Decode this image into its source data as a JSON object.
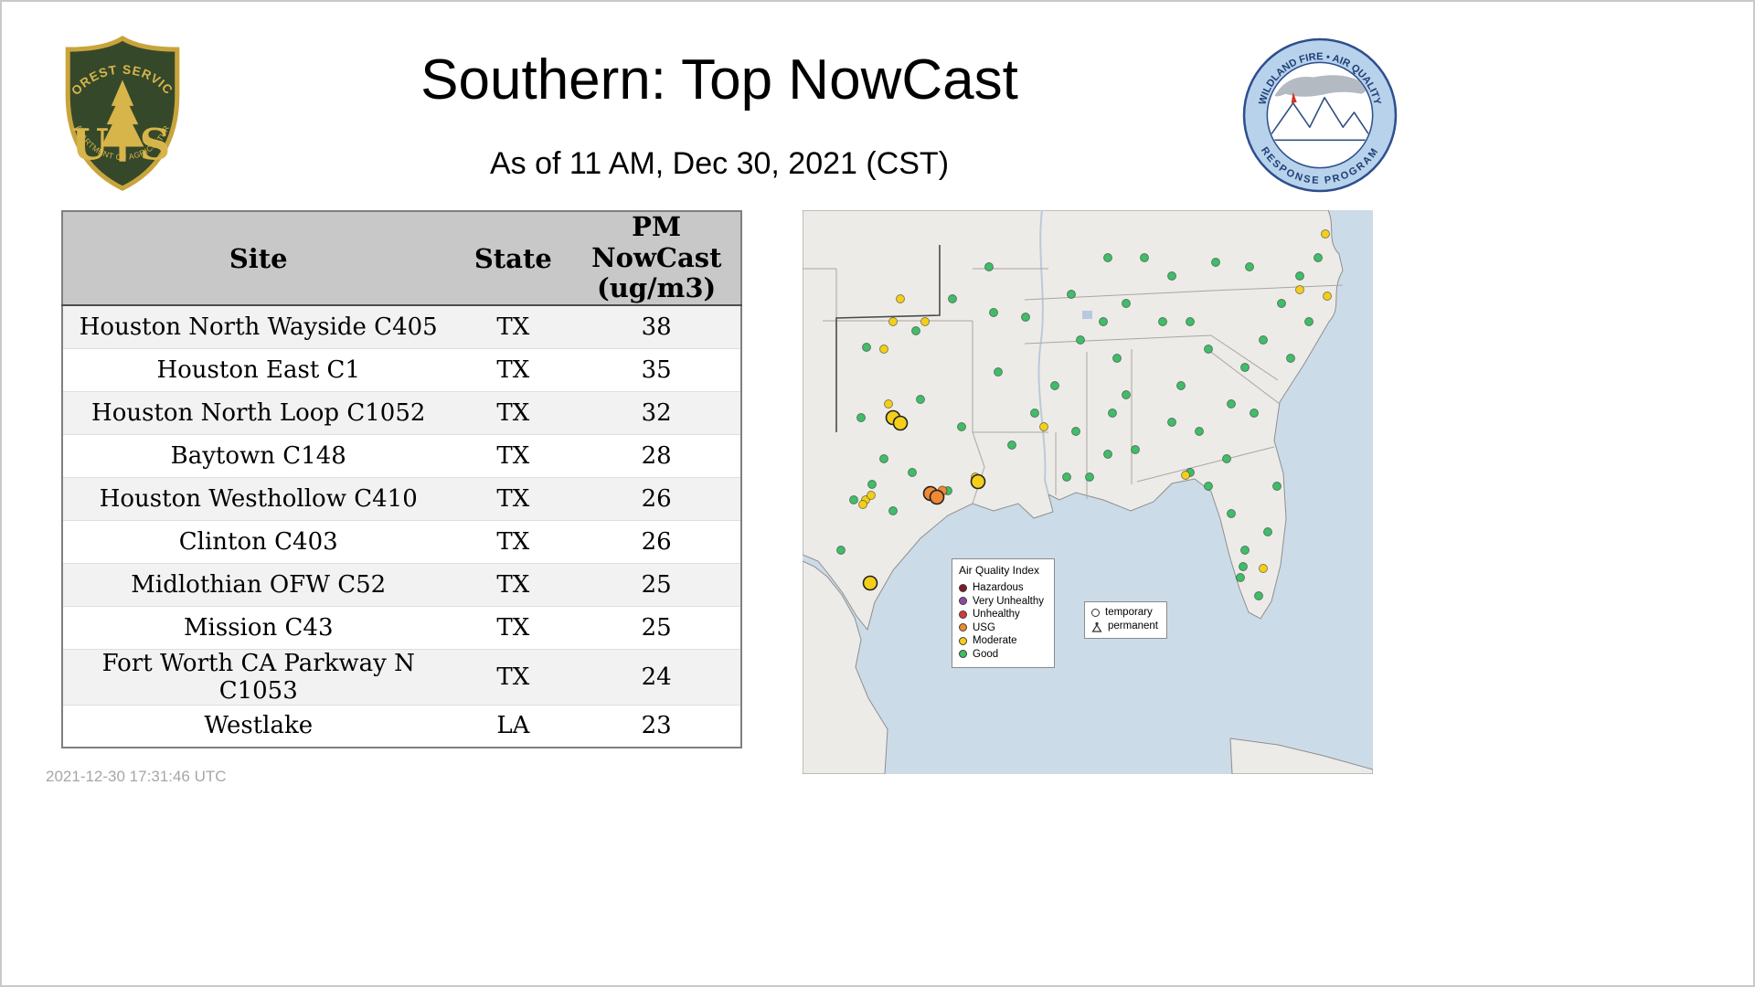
{
  "header": {
    "title": "Southern: Top NowCast",
    "subtitle": "As of 11 AM, Dec 30, 2021 (CST)",
    "usfs_logo": {
      "arc_top": "FOREST SERVICE",
      "letter_left": "U",
      "letter_right": "S",
      "arc_bottom": "DEPARTMENT OF AGRICULTURE"
    },
    "wfaqrp_logo": {
      "arc_top": "WILDLAND FIRE • AIR QUALITY",
      "arc_bottom": "RESPONSE PROGRAM"
    }
  },
  "chart_data": {
    "type": "table",
    "title": "Southern: Top NowCast",
    "subtitle": "As of 11 AM, Dec 30, 2021 (CST)",
    "columns": [
      "Site",
      "State",
      "PM NowCast (ug/m3)"
    ],
    "rows": [
      [
        "Houston North Wayside C405",
        "TX",
        "38"
      ],
      [
        "Houston East C1",
        "TX",
        "35"
      ],
      [
        "Houston North Loop C1052",
        "TX",
        "32"
      ],
      [
        "Baytown C148",
        "TX",
        "28"
      ],
      [
        "Houston Westhollow C410",
        "TX",
        "26"
      ],
      [
        "Clinton C403",
        "TX",
        "26"
      ],
      [
        "Midlothian OFW C52",
        "TX",
        "25"
      ],
      [
        "Mission C43",
        "TX",
        "25"
      ],
      [
        "Fort Worth CA Parkway N C1053",
        "TX",
        "24"
      ],
      [
        "Westlake",
        "LA",
        "23"
      ]
    ]
  },
  "map": {
    "aqi_legend": {
      "title": "Air Quality Index",
      "items": [
        {
          "label": "Hazardous",
          "color": "#7e1a2f"
        },
        {
          "label": "Very Unhealthy",
          "color": "#8f4a9e"
        },
        {
          "label": "Unhealthy",
          "color": "#d23b3b"
        },
        {
          "label": "USG",
          "color": "#ef8933"
        },
        {
          "label": "Moderate",
          "color": "#f3cf19"
        },
        {
          "label": "Good",
          "color": "#3fbd68"
        }
      ]
    },
    "marker_legend": {
      "temporary": "temporary",
      "permanent": "permanent"
    },
    "colors": {
      "good": "#3fbd68",
      "moderate": "#f3cf19",
      "usg": "#ef8933",
      "water": "#ccdbe8",
      "land": "#edebe7"
    },
    "point_format": "[x, y, aqi, marker(p=permanent,t=temporary)]",
    "points": [
      [
        70,
        150,
        "good",
        "p"
      ],
      [
        124,
        132,
        "good",
        "p"
      ],
      [
        164,
        97,
        "good",
        "p"
      ],
      [
        204,
        62,
        "good",
        "p"
      ],
      [
        209,
        112,
        "good",
        "p"
      ],
      [
        214,
        177,
        "good",
        "p"
      ],
      [
        174,
        237,
        "good",
        "p"
      ],
      [
        129,
        207,
        "good",
        "p"
      ],
      [
        120,
        287,
        "good",
        "p"
      ],
      [
        159,
        307,
        "good",
        "p"
      ],
      [
        89,
        272,
        "good",
        "p"
      ],
      [
        64,
        227,
        "good",
        "p"
      ],
      [
        76,
        300,
        "good",
        "p"
      ],
      [
        56,
        317,
        "good",
        "p"
      ],
      [
        99,
        329,
        "good",
        "p"
      ],
      [
        42,
        372,
        "good",
        "p"
      ],
      [
        229,
        257,
        "good",
        "p"
      ],
      [
        254,
        222,
        "good",
        "p"
      ],
      [
        276,
        192,
        "good",
        "p"
      ],
      [
        244,
        117,
        "good",
        "p"
      ],
      [
        294,
        92,
        "good",
        "p"
      ],
      [
        304,
        142,
        "good",
        "p"
      ],
      [
        329,
        122,
        "good",
        "p"
      ],
      [
        354,
        202,
        "good",
        "p"
      ],
      [
        364,
        262,
        "good",
        "p"
      ],
      [
        299,
        242,
        "good",
        "p"
      ],
      [
        289,
        292,
        "good",
        "p"
      ],
      [
        314,
        292,
        "good",
        "p"
      ],
      [
        334,
        267,
        "good",
        "p"
      ],
      [
        339,
        222,
        "good",
        "p"
      ],
      [
        344,
        162,
        "good",
        "p"
      ],
      [
        354,
        102,
        "good",
        "p"
      ],
      [
        374,
        52,
        "good",
        "p"
      ],
      [
        334,
        52,
        "good",
        "p"
      ],
      [
        394,
        122,
        "good",
        "p"
      ],
      [
        404,
        72,
        "good",
        "p"
      ],
      [
        424,
        122,
        "good",
        "p"
      ],
      [
        414,
        192,
        "good",
        "p"
      ],
      [
        404,
        232,
        "good",
        "p"
      ],
      [
        434,
        242,
        "good",
        "p"
      ],
      [
        444,
        152,
        "good",
        "p"
      ],
      [
        452,
        57,
        "good",
        "p"
      ],
      [
        489,
        62,
        "good",
        "p"
      ],
      [
        524,
        102,
        "good",
        "p"
      ],
      [
        544,
        72,
        "good",
        "p"
      ],
      [
        564,
        52,
        "good",
        "p"
      ],
      [
        554,
        122,
        "good",
        "p"
      ],
      [
        534,
        162,
        "good",
        "p"
      ],
      [
        504,
        142,
        "good",
        "p"
      ],
      [
        484,
        172,
        "good",
        "p"
      ],
      [
        469,
        212,
        "good",
        "p"
      ],
      [
        494,
        222,
        "good",
        "p"
      ],
      [
        464,
        272,
        "good",
        "p"
      ],
      [
        424,
        287,
        "good",
        "p"
      ],
      [
        444,
        302,
        "good",
        "p"
      ],
      [
        469,
        332,
        "good",
        "p"
      ],
      [
        484,
        372,
        "good",
        "p"
      ],
      [
        482,
        390,
        "good",
        "p"
      ],
      [
        479,
        402,
        "good",
        "p"
      ],
      [
        499,
        422,
        "good",
        "p"
      ],
      [
        519,
        302,
        "good",
        "p"
      ],
      [
        509,
        352,
        "good",
        "p"
      ],
      [
        99,
        122,
        "moderate",
        "p"
      ],
      [
        89,
        152,
        "moderate",
        "p"
      ],
      [
        134,
        122,
        "moderate",
        "p"
      ],
      [
        107,
        97,
        "moderate",
        "p"
      ],
      [
        94,
        212,
        "moderate",
        "p"
      ],
      [
        69,
        317,
        "moderate",
        "p"
      ],
      [
        75,
        312,
        "moderate",
        "p"
      ],
      [
        66,
        322,
        "moderate",
        "p"
      ],
      [
        189,
        292,
        "moderate",
        "p"
      ],
      [
        264,
        237,
        "moderate",
        "p"
      ],
      [
        419,
        290,
        "moderate",
        "p"
      ],
      [
        504,
        392,
        "moderate",
        "p"
      ],
      [
        574,
        94,
        "moderate",
        "p"
      ],
      [
        544,
        87,
        "moderate",
        "p"
      ],
      [
        572,
        26,
        "moderate",
        "p"
      ],
      [
        153,
        307,
        "usg",
        "p"
      ],
      [
        99,
        227,
        "moderate",
        "t"
      ],
      [
        107,
        233,
        "moderate",
        "t"
      ],
      [
        192,
        297,
        "moderate",
        "t"
      ],
      [
        74,
        408,
        "moderate",
        "t"
      ],
      [
        140,
        310,
        "usg",
        "t"
      ],
      [
        147,
        314,
        "usg",
        "t"
      ]
    ]
  },
  "footer": {
    "timestamp": "2021-12-30 17:31:46 UTC"
  }
}
